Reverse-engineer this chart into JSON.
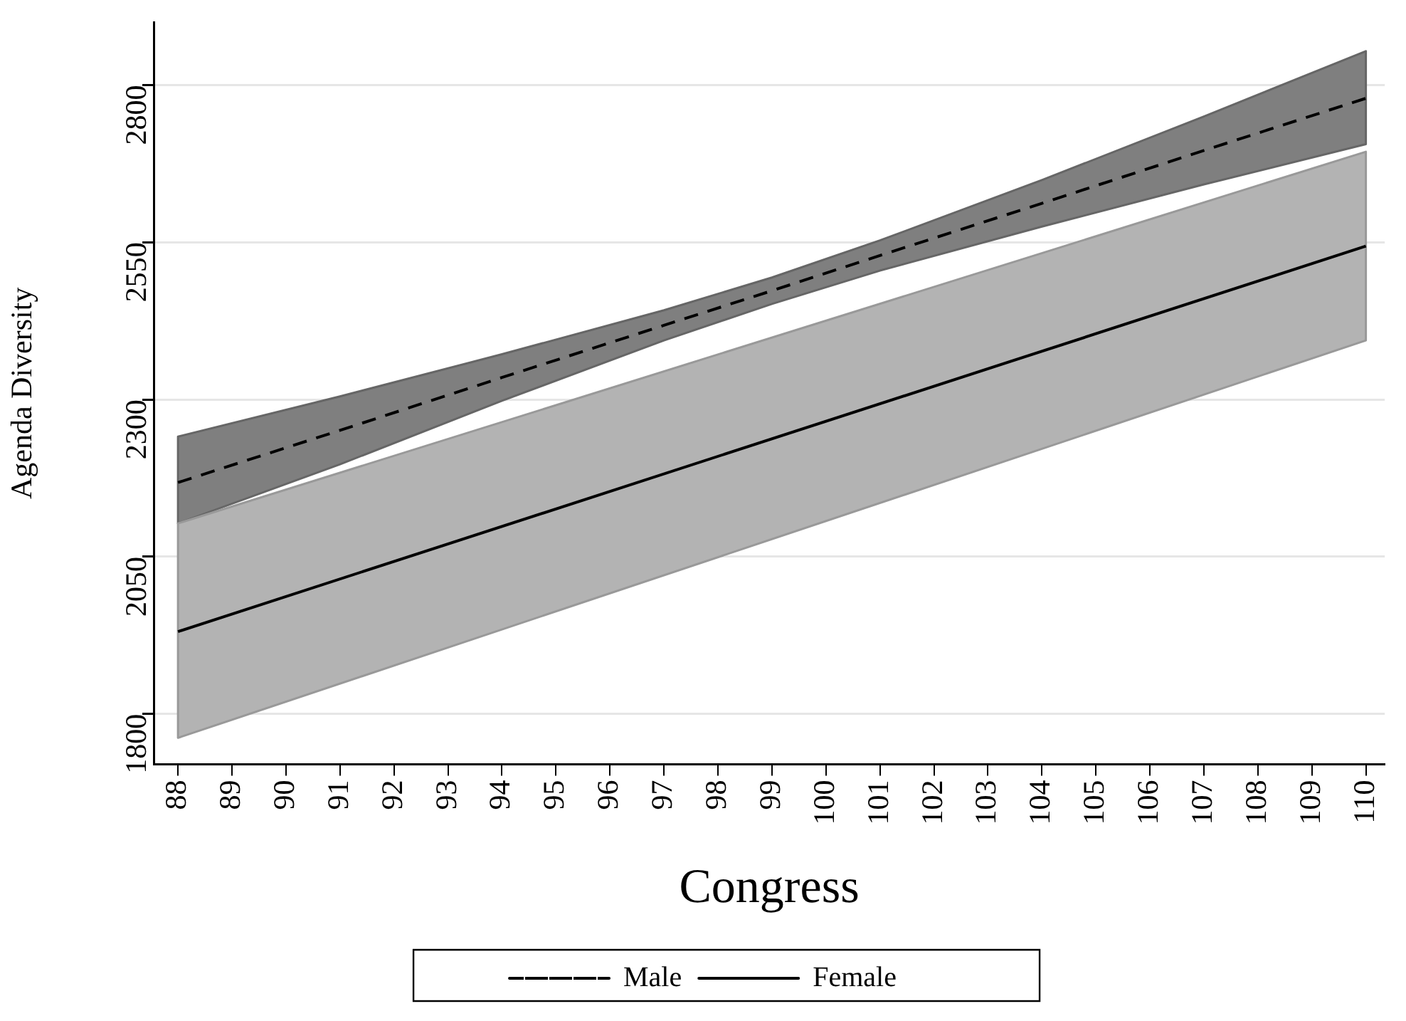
{
  "chart_data": {
    "type": "line",
    "xlabel": "Congress",
    "ylabel": "Agenda Diversity",
    "xlim": [
      87.55,
      110.35
    ],
    "xticks": [
      88,
      89,
      90,
      91,
      92,
      93,
      94,
      95,
      96,
      97,
      98,
      99,
      100,
      101,
      102,
      103,
      104,
      105,
      106,
      107,
      108,
      109,
      110
    ],
    "ylim": [
      1720,
      2900
    ],
    "yticks": [
      1800,
      2050,
      2300,
      2550,
      2800
    ],
    "grid": "y",
    "legend": "bottom",
    "marker": "none",
    "series": [
      {
        "name": "Male",
        "color": "#000000",
        "line_style": "dashed",
        "x": [
          88,
          91,
          94,
          97,
          99,
          101,
          104,
          107,
          110
        ],
        "values": [
          2168,
          2251,
          2335,
          2418,
          2473,
          2529,
          2612,
          2696,
          2779
        ],
        "lower": [
          2103,
          2197,
          2298,
          2394,
          2452,
          2505,
          2575,
          2642,
          2706
        ],
        "upper": [
          2241,
          2305,
          2372,
          2442,
          2494,
          2553,
          2649,
          2750,
          2854
        ]
      },
      {
        "name": "Female",
        "color": "#000000",
        "line_style": "solid",
        "x": [
          88,
          110
        ],
        "values": [
          1931,
          2544
        ],
        "lower": [
          1762,
          2394
        ],
        "upper": [
          2103,
          2694
        ]
      }
    ]
  }
}
